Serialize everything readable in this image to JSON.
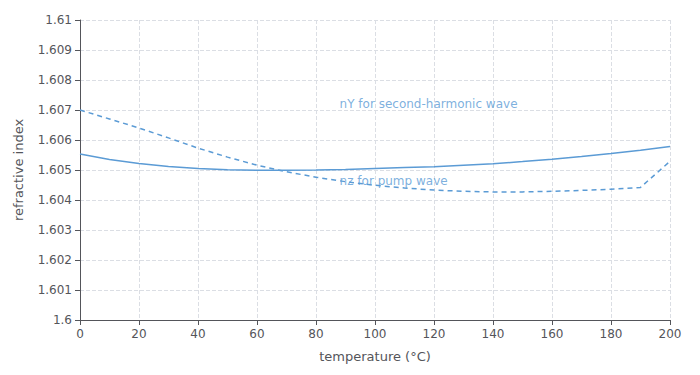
{
  "chart_data": {
    "type": "line",
    "xlabel": "temperature (°C)",
    "ylabel": "refractive index",
    "xlim": [
      0,
      200
    ],
    "ylim": [
      1.6,
      1.61
    ],
    "xticks": [
      0,
      20,
      40,
      60,
      80,
      100,
      120,
      140,
      160,
      180,
      200
    ],
    "yticks": [
      1.6,
      1.601,
      1.602,
      1.603,
      1.604,
      1.605,
      1.606,
      1.607,
      1.608,
      1.609,
      1.61
    ],
    "grid": true,
    "color": "#5b9bd5",
    "x": [
      0,
      10,
      20,
      30,
      40,
      50,
      60,
      70,
      80,
      90,
      100,
      110,
      120,
      130,
      140,
      150,
      160,
      170,
      180,
      190,
      200
    ],
    "series": [
      {
        "line_style": "solid",
        "values": [
          1.60553,
          1.60535,
          1.60522,
          1.60512,
          1.60505,
          1.60501,
          1.60499,
          1.60499,
          1.605,
          1.60502,
          1.60505,
          1.60508,
          1.60511,
          1.60516,
          1.60521,
          1.60528,
          1.60536,
          1.60545,
          1.60555,
          1.60566,
          1.60578
        ]
      },
      {
        "line_style": "dashed",
        "values": [
          1.607,
          1.6067,
          1.6064,
          1.60607,
          1.60573,
          1.60543,
          1.60516,
          1.60494,
          1.60476,
          1.60461,
          1.60449,
          1.6044,
          1.60433,
          1.60429,
          1.60427,
          1.60427,
          1.60429,
          1.60432,
          1.60436,
          1.60442,
          1.60529
        ]
      }
    ],
    "annotations": [
      {
        "text": "nY for second-harmonic wave",
        "x": 88,
        "y": 1.6072
      },
      {
        "text": "nz for pump wave",
        "x": 88,
        "y": 1.60465
      }
    ]
  }
}
